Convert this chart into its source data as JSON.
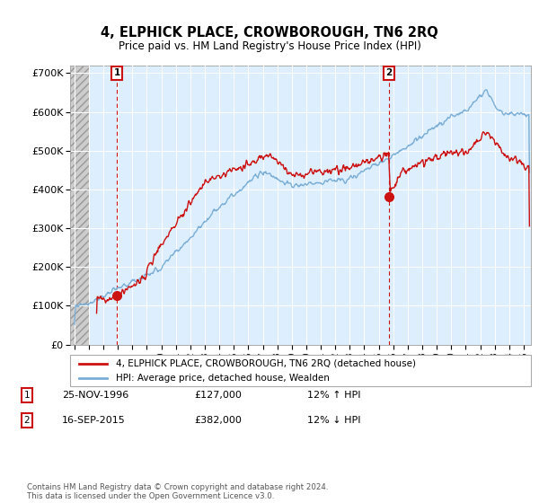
{
  "title": "4, ELPHICK PLACE, CROWBOROUGH, TN6 2RQ",
  "subtitle": "Price paid vs. HM Land Registry's House Price Index (HPI)",
  "ylabel_ticks": [
    "£0",
    "£100K",
    "£200K",
    "£300K",
    "£400K",
    "£500K",
    "£600K",
    "£700K"
  ],
  "ytick_values": [
    0,
    100000,
    200000,
    300000,
    400000,
    500000,
    600000,
    700000
  ],
  "ylim": [
    0,
    720000
  ],
  "xlim_start": 1993.7,
  "xlim_end": 2025.5,
  "hpi_color": "#7aaed6",
  "price_color": "#cc1111",
  "marker1_date": 1996.92,
  "marker1_price": 127000,
  "marker2_date": 2015.72,
  "marker2_price": 382000,
  "legend_label1": "4, ELPHICK PLACE, CROWBOROUGH, TN6 2RQ (detached house)",
  "legend_label2": "HPI: Average price, detached house, Wealden",
  "footnote": "Contains HM Land Registry data © Crown copyright and database right 2024.\nThis data is licensed under the Open Government Licence v3.0.",
  "chart_bg_color": "#ddeeff",
  "hatch_bg_color": "#cccccc",
  "grid_color": "#ffffff",
  "dashed_line_color": "#cc1111"
}
